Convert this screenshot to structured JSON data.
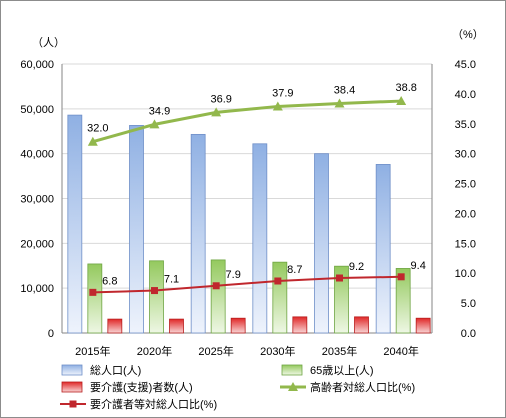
{
  "chart_data": {
    "type": "bar",
    "categories": [
      "2015年",
      "2020年",
      "2025年",
      "2030年",
      "2035年",
      "2040年"
    ],
    "y_unit_left": "（人）",
    "y_unit_right": "（%）",
    "ylim_left": [
      0,
      60000
    ],
    "ylim_right": [
      0,
      45.0
    ],
    "yticks_left": [
      "0",
      "10,000",
      "20,000",
      "30,000",
      "40,000",
      "50,000",
      "60,000"
    ],
    "yticks_right": [
      "0.0",
      "5.0",
      "10.0",
      "15.0",
      "20.0",
      "25.0",
      "30.0",
      "35.0",
      "40.0",
      "45.0"
    ],
    "grid": true,
    "legend_position": "bottom",
    "series": [
      {
        "name": "総人口(人)",
        "kind": "bar",
        "axis": "left",
        "color": "#9dbbe5",
        "values": [
          48600,
          46300,
          44300,
          42200,
          40000,
          37600
        ]
      },
      {
        "name": "65歳以上(人)",
        "kind": "bar",
        "axis": "left",
        "color": "#9ccc6a",
        "values": [
          15400,
          16100,
          16300,
          15800,
          14900,
          14400
        ]
      },
      {
        "name": "要介護(支援)者数(人)",
        "kind": "bar",
        "axis": "left",
        "color": "#e03030",
        "values": [
          3100,
          3100,
          3300,
          3600,
          3600,
          3300
        ]
      },
      {
        "name": "高齢者対総人口比(%)",
        "kind": "line",
        "axis": "right",
        "color": "#92b84c",
        "values": [
          32.0,
          34.9,
          36.9,
          37.9,
          38.4,
          38.8
        ],
        "labels": [
          "32.0",
          "34.9",
          "36.9",
          "37.9",
          "38.4",
          "38.8"
        ]
      },
      {
        "name": "要介護者等対総人口比(%)",
        "kind": "line",
        "axis": "right",
        "color": "#c0272d",
        "values": [
          6.8,
          7.1,
          7.9,
          8.7,
          9.2,
          9.4
        ],
        "labels": [
          "6.8",
          "7.1",
          "7.9",
          "8.7",
          "9.2",
          "9.4"
        ]
      }
    ]
  }
}
